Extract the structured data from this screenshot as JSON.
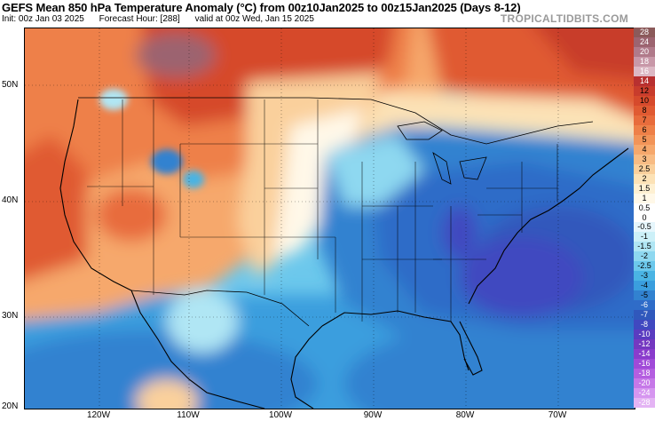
{
  "header": {
    "title": "GEFS Mean 850 hPa Temperature Anomaly (°C) from 00z10Jan2025 to 00z15Jan2025 (Days 8-12)",
    "init": "Init: 00z Jan 03 2025",
    "forecast_hour": "Forecast Hour: [288]",
    "valid": "valid at 00z Wed, Jan 15 2025",
    "brand": "TROPICALTIDBITS.COM"
  },
  "axes": {
    "lat_labels": [
      "50N",
      "40N",
      "30N",
      "20N"
    ],
    "lon_labels": [
      "120W",
      "110W",
      "100W",
      "90W",
      "80W",
      "70W"
    ]
  },
  "colorbar": {
    "labels": [
      "28",
      "24",
      "20",
      "18",
      "16",
      "14",
      "12",
      "10",
      "8",
      "7",
      "6",
      "5",
      "4",
      "3",
      "2.5",
      "2",
      "1.5",
      "1",
      "0.5",
      "0",
      "-0.5",
      "-1",
      "-1.5",
      "-2",
      "-2.5",
      "-3",
      "-4",
      "-5",
      "-6",
      "-7",
      "-8",
      "-10",
      "-12",
      "-14",
      "-16",
      "-18",
      "-20",
      "-24",
      "-28"
    ],
    "colors": [
      "#8b5a5a",
      "#9c6470",
      "#b07a8a",
      "#c898a8",
      "#dcb8c4",
      "#b83030",
      "#c83c2c",
      "#d64a2c",
      "#e05a32",
      "#e86c3c",
      "#ee8048",
      "#f29458",
      "#f6a86c",
      "#f8bc84",
      "#fad09c",
      "#fce2b6",
      "#fef0d2",
      "#fff8e8",
      "#ffffff",
      "#ffffff",
      "#e6f6fc",
      "#ccf0f8",
      "#b0e6f4",
      "#8ed8f0",
      "#6cc8ec",
      "#4ab4e4",
      "#3a9ede",
      "#3282d0",
      "#2f6cc8",
      "#3058bc",
      "#4048c0",
      "#5a3cc0",
      "#7438c0",
      "#8a3ccc",
      "#a04ad8",
      "#b45ee0",
      "#c678e8",
      "#d696f0",
      "#e4b4f4"
    ]
  }
}
